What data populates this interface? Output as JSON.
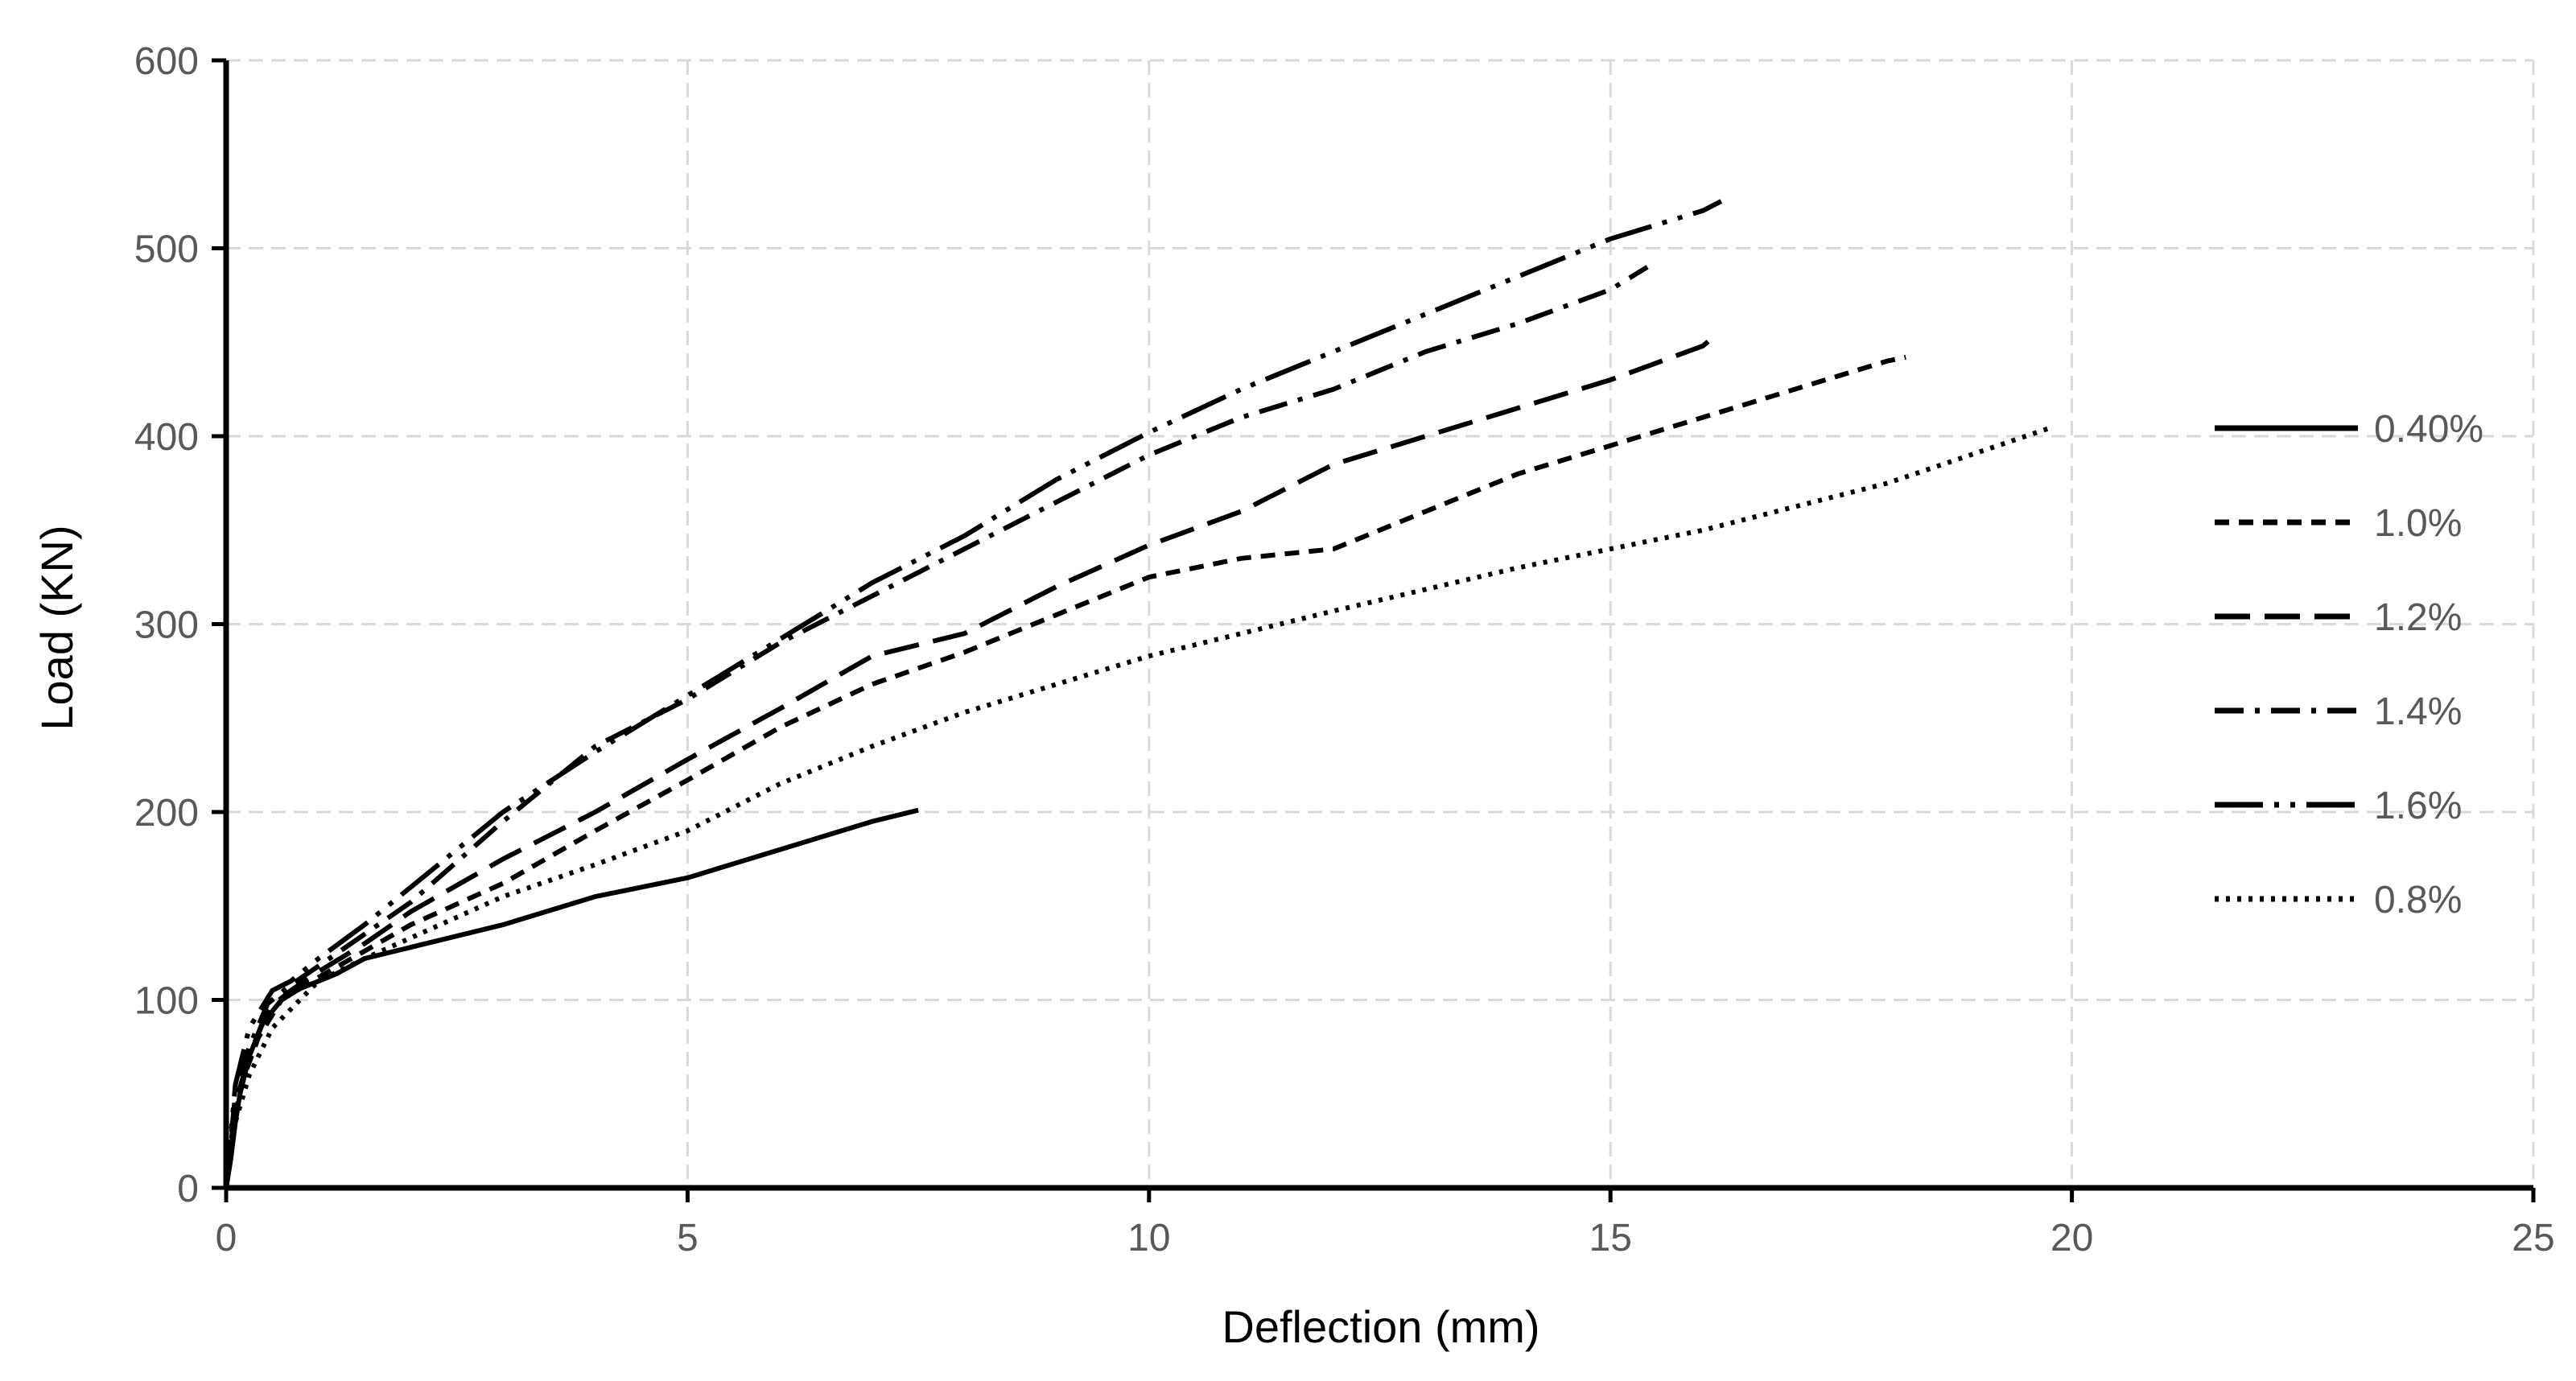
{
  "chart_data": {
    "type": "line",
    "title": "",
    "xlabel": "Deflection (mm)",
    "ylabel": "Load (KN)",
    "xlim": [
      0,
      25
    ],
    "ylim": [
      0,
      600
    ],
    "xticks": [
      0,
      5,
      10,
      15,
      20,
      25
    ],
    "yticks": [
      0,
      100,
      200,
      300,
      400,
      500,
      600
    ],
    "grid": true,
    "legend_position": "right",
    "series": [
      {
        "name": "0.40%",
        "style": "solid",
        "points": [
          [
            0,
            0
          ],
          [
            0.05,
            15
          ],
          [
            0.1,
            35
          ],
          [
            0.15,
            50
          ],
          [
            0.25,
            70
          ],
          [
            0.4,
            88
          ],
          [
            0.6,
            100
          ],
          [
            0.8,
            106
          ],
          [
            1.0,
            110
          ],
          [
            1.2,
            114
          ],
          [
            1.5,
            122
          ],
          [
            2,
            128
          ],
          [
            3,
            140
          ],
          [
            4,
            155
          ],
          [
            5,
            165
          ],
          [
            6,
            180
          ],
          [
            7,
            195
          ],
          [
            7.5,
            201
          ]
        ]
      },
      {
        "name": "1.0%",
        "style": "short-dash",
        "points": [
          [
            0,
            0
          ],
          [
            0.1,
            40
          ],
          [
            0.2,
            60
          ],
          [
            0.35,
            80
          ],
          [
            0.6,
            100
          ],
          [
            1,
            112
          ],
          [
            1.5,
            126
          ],
          [
            2,
            140
          ],
          [
            3,
            162
          ],
          [
            4,
            190
          ],
          [
            5,
            217
          ],
          [
            6,
            245
          ],
          [
            7,
            268
          ],
          [
            8,
            285
          ],
          [
            9,
            305
          ],
          [
            10,
            325
          ],
          [
            11,
            335
          ],
          [
            12,
            340
          ],
          [
            13,
            360
          ],
          [
            14,
            380
          ],
          [
            15,
            395
          ],
          [
            16,
            410
          ],
          [
            17,
            425
          ],
          [
            18,
            440
          ],
          [
            18.2,
            442
          ]
        ]
      },
      {
        "name": "1.2%",
        "style": "long-dash",
        "points": [
          [
            0,
            0
          ],
          [
            0.1,
            45
          ],
          [
            0.25,
            70
          ],
          [
            0.45,
            95
          ],
          [
            0.7,
            105
          ],
          [
            1,
            115
          ],
          [
            1.5,
            130
          ],
          [
            2,
            147
          ],
          [
            3,
            175
          ],
          [
            4,
            200
          ],
          [
            5,
            228
          ],
          [
            6,
            255
          ],
          [
            7,
            283
          ],
          [
            8,
            295
          ],
          [
            9,
            320
          ],
          [
            10,
            342
          ],
          [
            11,
            360
          ],
          [
            12,
            385
          ],
          [
            13,
            400
          ],
          [
            14,
            415
          ],
          [
            15,
            430
          ],
          [
            16,
            448
          ],
          [
            16.1,
            452
          ]
        ]
      },
      {
        "name": "1.4%",
        "style": "dash-dot",
        "points": [
          [
            0,
            0
          ],
          [
            0.1,
            50
          ],
          [
            0.25,
            75
          ],
          [
            0.45,
            98
          ],
          [
            0.7,
            108
          ],
          [
            1,
            118
          ],
          [
            1.5,
            135
          ],
          [
            2,
            152
          ],
          [
            3,
            195
          ],
          [
            4,
            235
          ],
          [
            5,
            260
          ],
          [
            6,
            290
          ],
          [
            7,
            315
          ],
          [
            8,
            340
          ],
          [
            9,
            365
          ],
          [
            10,
            390
          ],
          [
            11,
            410
          ],
          [
            12,
            425
          ],
          [
            13,
            445
          ],
          [
            14,
            460
          ],
          [
            15,
            478
          ],
          [
            15.4,
            490
          ]
        ]
      },
      {
        "name": "1.6%",
        "style": "long-dash-dot-dot",
        "points": [
          [
            0,
            0
          ],
          [
            0.1,
            55
          ],
          [
            0.25,
            85
          ],
          [
            0.5,
            105
          ],
          [
            0.7,
            110
          ],
          [
            1,
            122
          ],
          [
            1.5,
            140
          ],
          [
            2,
            160
          ],
          [
            3,
            200
          ],
          [
            4,
            232
          ],
          [
            5,
            262
          ],
          [
            6,
            292
          ],
          [
            7,
            322
          ],
          [
            8,
            347
          ],
          [
            9,
            377
          ],
          [
            10,
            402
          ],
          [
            11,
            425
          ],
          [
            12,
            445
          ],
          [
            13,
            465
          ],
          [
            14,
            485
          ],
          [
            15,
            505
          ],
          [
            16,
            520
          ],
          [
            16.2,
            525
          ]
        ]
      },
      {
        "name": "0.8%",
        "style": "dotted",
        "points": [
          [
            0,
            0
          ],
          [
            0.1,
            35
          ],
          [
            0.25,
            60
          ],
          [
            0.5,
            85
          ],
          [
            0.8,
            100
          ],
          [
            1,
            110
          ],
          [
            1.5,
            122
          ],
          [
            2,
            133
          ],
          [
            3,
            155
          ],
          [
            4,
            172
          ],
          [
            5,
            190
          ],
          [
            6,
            215
          ],
          [
            7,
            235
          ],
          [
            8,
            253
          ],
          [
            9,
            268
          ],
          [
            10,
            283
          ],
          [
            12,
            307
          ],
          [
            14,
            330
          ],
          [
            16,
            350
          ],
          [
            18,
            375
          ],
          [
            19.8,
            405
          ]
        ]
      }
    ]
  }
}
